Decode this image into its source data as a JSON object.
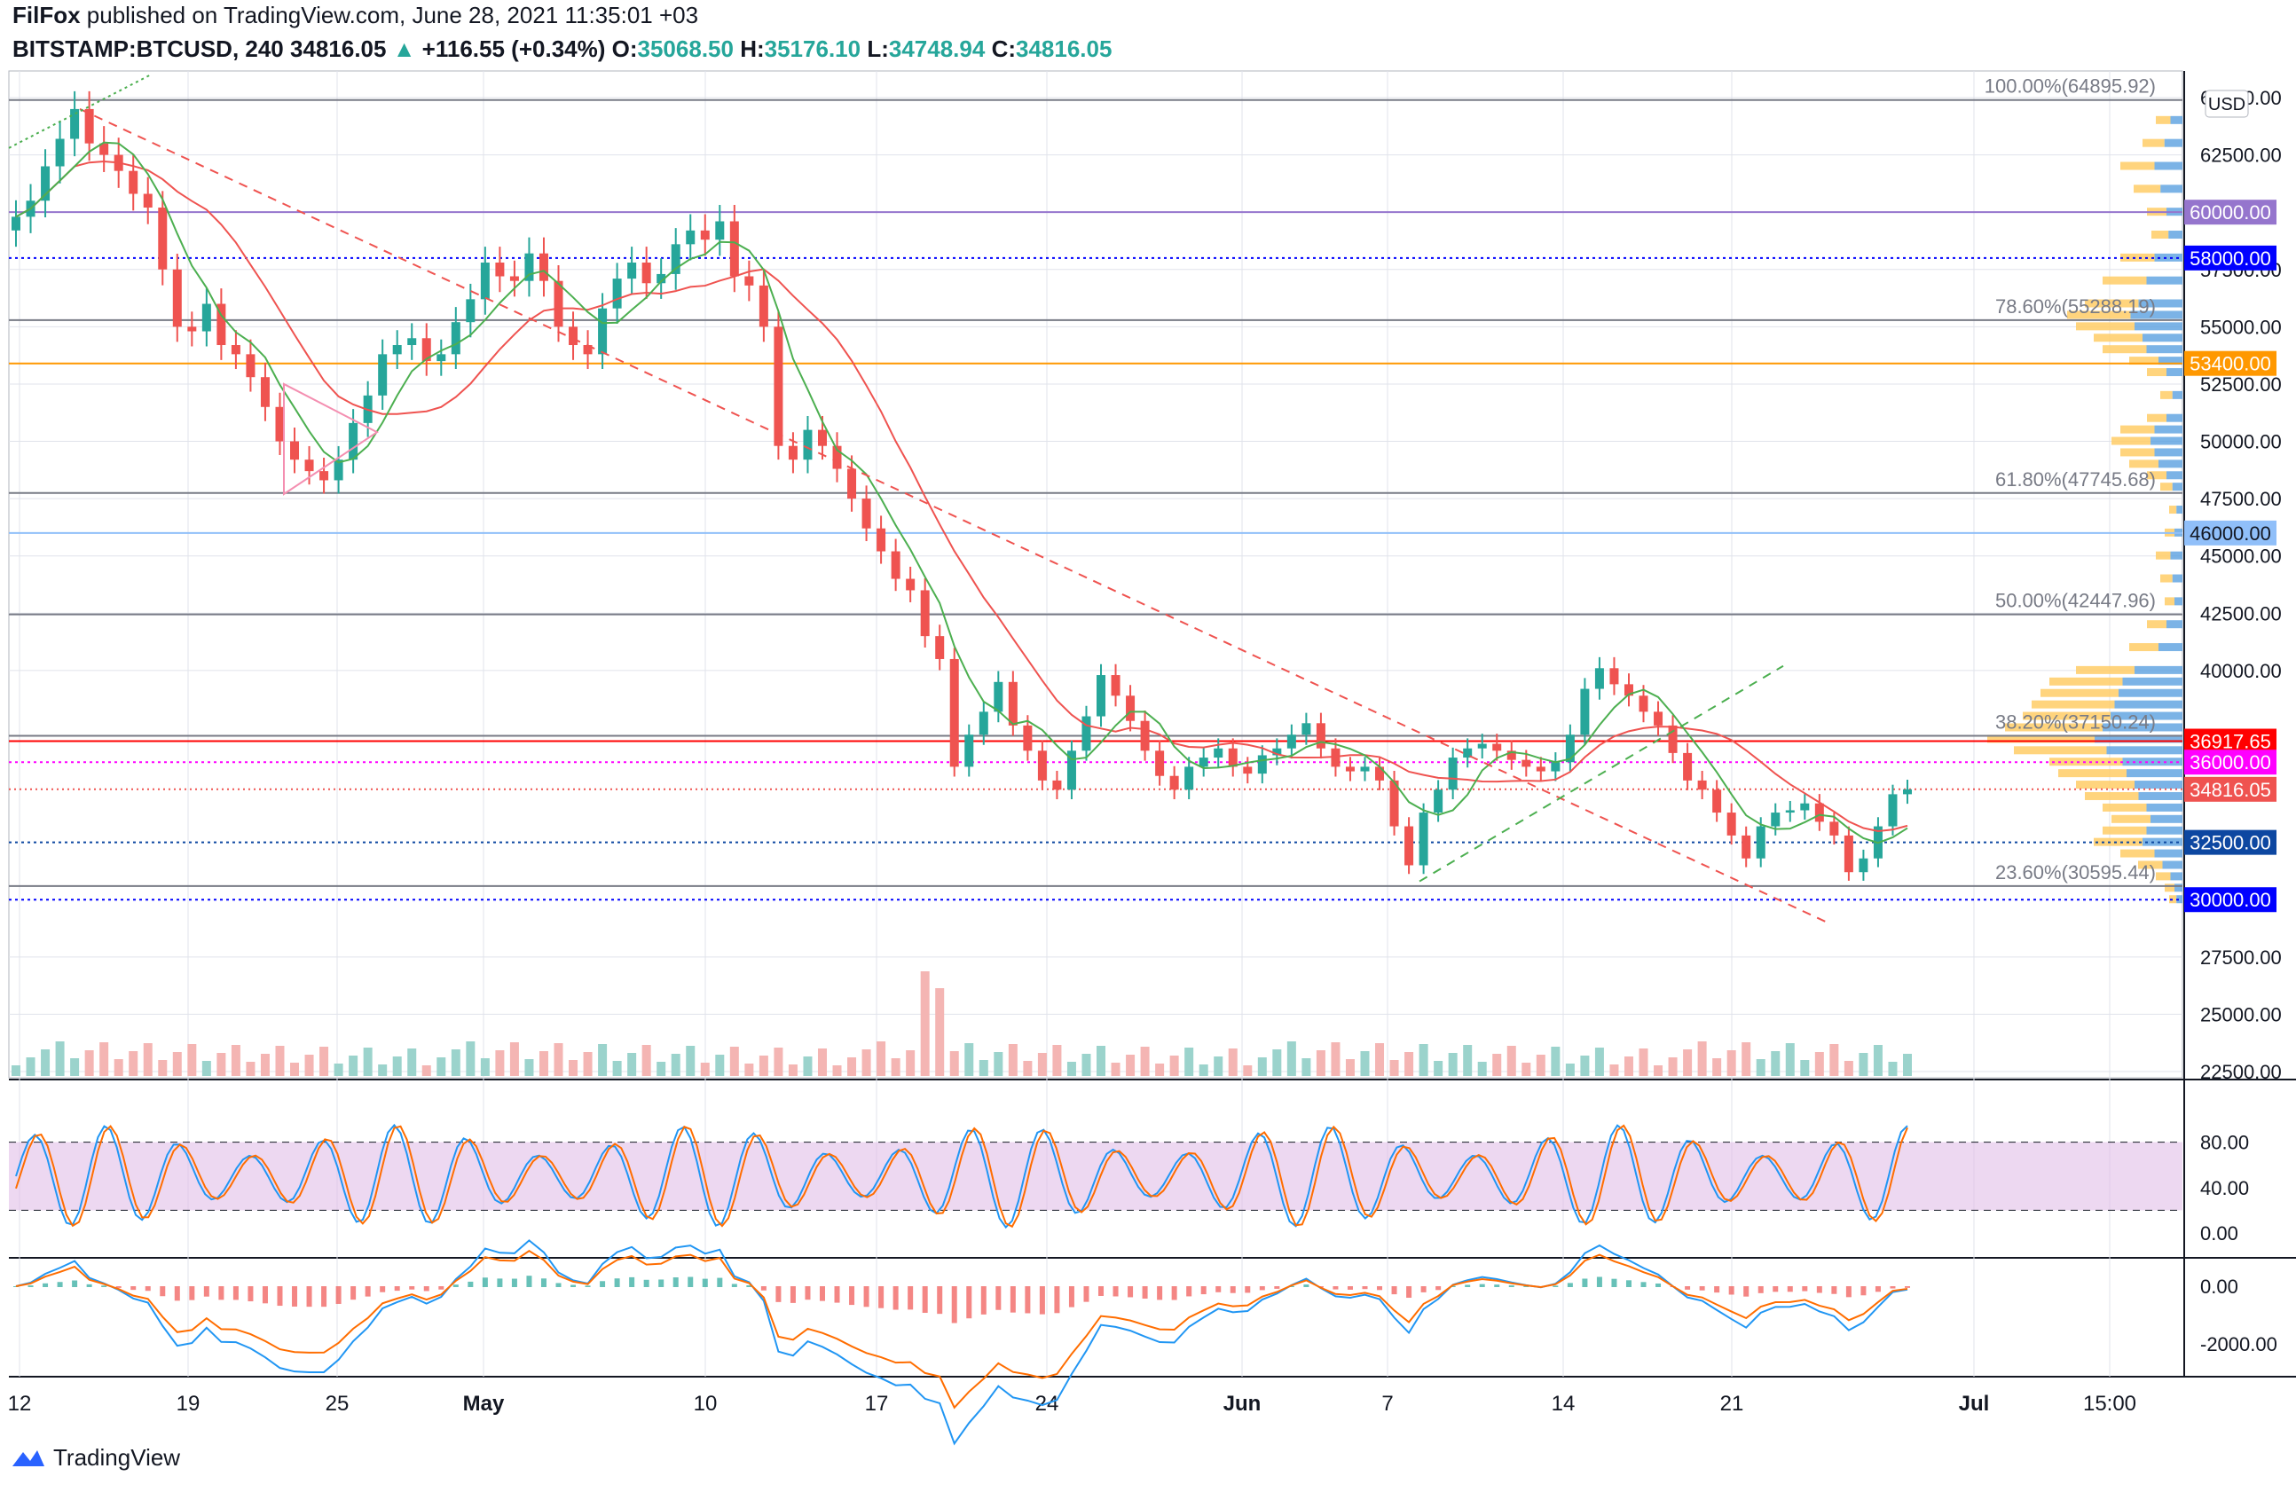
{
  "header": {
    "publisher": "FilFox",
    "published_text": "published on TradingView.com, June 28, 2021 11:35:01 +03",
    "symbol": "BITSTAMP:BTCUSD, 240",
    "last": "34816.05",
    "change_arrow": "▲",
    "change": "+116.55 (+0.34%)",
    "open_label": "O:",
    "open": "35068.50",
    "high_label": "H:",
    "high": "35176.10",
    "low_label": "L:",
    "low": "34748.94",
    "close_label": "C:",
    "close": "34816.05"
  },
  "footer": {
    "brand": "TradingView"
  },
  "chart_data": {
    "type": "candlestick",
    "currency": "USD",
    "x_ticks": [
      "12",
      "19",
      "25",
      "May",
      "10",
      "17",
      "24",
      "Jun",
      "7",
      "14",
      "21",
      "Jul",
      "15:00"
    ],
    "y_ticks": [
      "65000.00",
      "62500.00",
      "57500.00",
      "55000.00",
      "52500.00",
      "50000.00",
      "47500.00",
      "45000.00",
      "42500.00",
      "40000.00",
      "27500.00",
      "25000.00",
      "22500.00"
    ],
    "price_badges": [
      {
        "value": "60000.00",
        "color": "#9575cd"
      },
      {
        "value": "58000.00",
        "color": "#0000ff"
      },
      {
        "value": "53400.00",
        "color": "#ff9800"
      },
      {
        "value": "46000.00",
        "color": "#90bff9"
      },
      {
        "value": "36917.65",
        "color": "#ff0000"
      },
      {
        "value": "36000.00",
        "color": "#ff00ff"
      },
      {
        "value": "34816.05",
        "color": "#ef5350"
      },
      {
        "value": "32500.00",
        "color": "#0d47a1"
      },
      {
        "value": "30000.00",
        "color": "#0000ff"
      }
    ],
    "fib_levels": [
      {
        "label": "100.00%(64895.92)",
        "price": 64895.92
      },
      {
        "label": "78.60%(55288.19)",
        "price": 55288.19
      },
      {
        "label": "61.80%(47745.68)",
        "price": 47745.68
      },
      {
        "label": "50.00%(42447.96)",
        "price": 42447.96
      },
      {
        "label": "38.20%(37150.24)",
        "price": 37150.24
      },
      {
        "label": "23.60%(30595.44)",
        "price": 30595.44
      }
    ],
    "close_series": [
      59800,
      60500,
      62000,
      63200,
      64500,
      63000,
      62500,
      61800,
      60800,
      60200,
      57500,
      55000,
      54800,
      56000,
      54200,
      53800,
      52800,
      51500,
      50000,
      49200,
      48700,
      48300,
      49200,
      50800,
      52000,
      53800,
      54200,
      54500,
      53500,
      53800,
      55200,
      56200,
      57800,
      57200,
      57000,
      58200,
      57000,
      55000,
      54200,
      53800,
      55800,
      57100,
      57800,
      56900,
      57300,
      58600,
      59200,
      58800,
      59600,
      57200,
      56800,
      55000,
      49800,
      49200,
      50500,
      49800,
      48800,
      47500,
      46200,
      45200,
      44000,
      43500,
      41500,
      40500,
      35800,
      37200,
      38200,
      39500,
      37600,
      36500,
      35200,
      34800,
      36500,
      38000,
      39800,
      38900,
      37800,
      36500,
      35400,
      34800,
      35800,
      36200,
      36600,
      35800,
      35500,
      36300,
      36600,
      37200,
      37700,
      36600,
      35800,
      35600,
      35800,
      35200,
      33200,
      31500,
      33800,
      34800,
      36200,
      36600,
      36800,
      36500,
      36100,
      35800,
      35600,
      36000,
      37200,
      39200,
      40100,
      39400,
      38900,
      38200,
      37600,
      36400,
      35200,
      34800,
      33800,
      32800,
      31800,
      33200,
      33800,
      33900,
      34200,
      33400,
      32800,
      31200,
      31800,
      33200,
      34600,
      34816
    ],
    "volume_profile_note": "horizontal volume profile on right side",
    "stoch_rsi": {
      "y_ticks": [
        "80.00",
        "40.00",
        "0.00"
      ],
      "upper": 80,
      "lower": 20
    },
    "macd": {
      "y_ticks": [
        "0.00",
        "-2000.00"
      ]
    }
  }
}
